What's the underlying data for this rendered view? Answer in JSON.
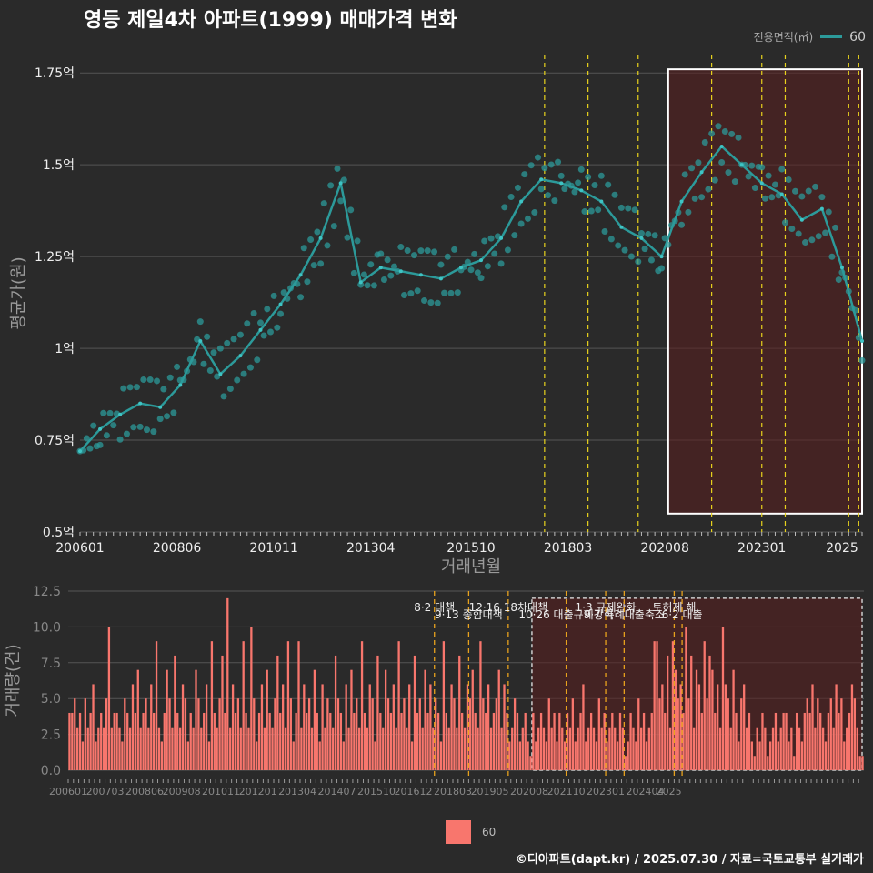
{
  "title": "영등 제일4차 아파트(1999) 매매가격 변화",
  "legend": {
    "title": "전용면적(㎡)",
    "label": "60"
  },
  "footer": "©디아파트(dapt.kr) / 2025.07.30 / 자료=국토교통부 실거래가",
  "colors": {
    "series": "#2c9a9a",
    "bar": "#f8766d",
    "policy": "#e8d21d",
    "highlight": "#5a1e1e",
    "highlight_border": "#ffffff",
    "bg": "#2a2a2a"
  },
  "chart_data": [
    {
      "type": "line",
      "xlabel": "거래년월",
      "ylabel": "평균가(원)",
      "x_tick_labels": [
        "200601",
        "200806",
        "201011",
        "201304",
        "201510",
        "201803",
        "202008",
        "202301",
        "2025"
      ],
      "y_ticks": [
        0.5,
        0.75,
        1.0,
        1.25,
        1.5,
        1.75
      ],
      "y_tick_labels": [
        "0.5억",
        "0.75억",
        "1억",
        "1.25억",
        "1.5억",
        "1.75억"
      ],
      "x_range": [
        "2006-01",
        "2025-07"
      ],
      "y_range": [
        0.5,
        1.8
      ],
      "y_unit": "억",
      "grid": true,
      "legend_position": "top-right",
      "highlight_range": {
        "x": [
          "2020-09",
          "2025-07"
        ],
        "y": [
          0.55,
          1.76
        ]
      },
      "policy_dates": [
        "2017-08",
        "2018-09",
        "2019-12",
        "2021-10",
        "2023-01",
        "2023-08",
        "2025-03",
        "2025-06"
      ],
      "series": [
        {
          "name": "60",
          "x": [
            "2006-01",
            "2006-07",
            "2007-01",
            "2007-07",
            "2008-01",
            "2008-07",
            "2009-01",
            "2009-07",
            "2010-01",
            "2010-07",
            "2011-01",
            "2011-07",
            "2012-01",
            "2012-07",
            "2013-01",
            "2013-07",
            "2014-01",
            "2014-07",
            "2015-01",
            "2015-07",
            "2016-01",
            "2016-07",
            "2017-01",
            "2017-07",
            "2018-01",
            "2018-07",
            "2019-01",
            "2019-07",
            "2020-01",
            "2020-07",
            "2021-01",
            "2021-07",
            "2022-01",
            "2022-07",
            "2023-01",
            "2023-07",
            "2024-01",
            "2024-07",
            "2025-01",
            "2025-07"
          ],
          "values": [
            0.72,
            0.78,
            0.82,
            0.85,
            0.84,
            0.9,
            1.02,
            0.93,
            0.98,
            1.05,
            1.12,
            1.2,
            1.3,
            1.45,
            1.18,
            1.22,
            1.21,
            1.2,
            1.19,
            1.22,
            1.24,
            1.3,
            1.4,
            1.46,
            1.45,
            1.43,
            1.4,
            1.33,
            1.3,
            1.25,
            1.4,
            1.48,
            1.55,
            1.5,
            1.45,
            1.42,
            1.35,
            1.38,
            1.22,
            1.02
          ]
        }
      ]
    },
    {
      "type": "bar",
      "ylabel": "거래량(건)",
      "y_ticks": [
        0.0,
        2.5,
        5.0,
        7.5,
        10.0,
        12.5
      ],
      "y_tick_labels": [
        "0.0",
        "2.5",
        "5.0",
        "7.5",
        "10.0",
        "12.5"
      ],
      "x_tick_labels": [
        "200601",
        "200703",
        "200806",
        "200908",
        "201011",
        "201201",
        "201304",
        "201407",
        "201510",
        "201612",
        "201803",
        "201905",
        "202008",
        "202110",
        "202301",
        "202404",
        "2025"
      ],
      "y_range": [
        0,
        12.5
      ],
      "highlight_range": {
        "x": [
          "2020-09",
          "2025-07"
        ],
        "y": [
          0,
          12
        ]
      },
      "policy_annotations": [
        {
          "date": "2017-08",
          "label": "8·2 대책"
        },
        {
          "date": "2018-09",
          "label": "9·13 종합대책"
        },
        {
          "date": "2019-12",
          "label": "12·16 18차대책"
        },
        {
          "date": "2021-10",
          "label": "10·26 대출규제강화"
        },
        {
          "date": "2023-01",
          "label": "1·3 규제완화"
        },
        {
          "date": "2023-08",
          "label": "9·7 특례대출축소"
        },
        {
          "date": "2025-03",
          "label": "토허제 해"
        },
        {
          "date": "2025-06",
          "label": "6·2 대출"
        }
      ],
      "series": [
        {
          "name": "60",
          "values": [
            4,
            4,
            5,
            3,
            4,
            2,
            5,
            3,
            4,
            6,
            2,
            3,
            4,
            3,
            5,
            10,
            3,
            4,
            4,
            3,
            2,
            5,
            4,
            3,
            6,
            4,
            7,
            3,
            4,
            5,
            3,
            6,
            4,
            9,
            3,
            2,
            4,
            7,
            5,
            3,
            8,
            4,
            3,
            6,
            5,
            2,
            4,
            3,
            7,
            5,
            3,
            4,
            6,
            2,
            9,
            4,
            3,
            5,
            8,
            4,
            12,
            3,
            6,
            4,
            5,
            3,
            9,
            4,
            3,
            10,
            5,
            2,
            4,
            6,
            3,
            7,
            4,
            3,
            5,
            8,
            4,
            6,
            3,
            9,
            5,
            2,
            4,
            9,
            3,
            6,
            4,
            5,
            3,
            7,
            4,
            2,
            6,
            3,
            5,
            4,
            3,
            8,
            5,
            4,
            2,
            6,
            3,
            7,
            4,
            5,
            3,
            9,
            4,
            3,
            6,
            5,
            2,
            8,
            4,
            3,
            7,
            5,
            4,
            6,
            3,
            9,
            4,
            5,
            3,
            6,
            2,
            8,
            4,
            5,
            3,
            7,
            4,
            6,
            3,
            5,
            4,
            2,
            9,
            4,
            3,
            6,
            5,
            3,
            8,
            4,
            3,
            6,
            5,
            7,
            4,
            3,
            9,
            5,
            4,
            6,
            3,
            4,
            5,
            7,
            3,
            6,
            4,
            2,
            3,
            5,
            4,
            2,
            3,
            4,
            2,
            1,
            4,
            2,
            3,
            4,
            3,
            2,
            5,
            3,
            4,
            2,
            4,
            3,
            2,
            4,
            3,
            5,
            2,
            3,
            4,
            6,
            2,
            3,
            4,
            3,
            2,
            5,
            3,
            4,
            2,
            3,
            4,
            3,
            2,
            4,
            3,
            1,
            2,
            4,
            3,
            2,
            5,
            3,
            4,
            2,
            3,
            4,
            9,
            9,
            5,
            6,
            4,
            8,
            3,
            9,
            7,
            5,
            6,
            4,
            10,
            5,
            8,
            3,
            7,
            6,
            4,
            9,
            5,
            8,
            7,
            4,
            6,
            3,
            10,
            6,
            5,
            3,
            7,
            4,
            2,
            5,
            6,
            3,
            4,
            2,
            1,
            3,
            2,
            4,
            3,
            1,
            2,
            3,
            4,
            2,
            3,
            4,
            4,
            2,
            3,
            1,
            4,
            3,
            2,
            4,
            5,
            4,
            6,
            3,
            5,
            4,
            3,
            2,
            4,
            5,
            3,
            6,
            4,
            5,
            2,
            3,
            4,
            6,
            5,
            3,
            1,
            1
          ]
        }
      ]
    }
  ]
}
